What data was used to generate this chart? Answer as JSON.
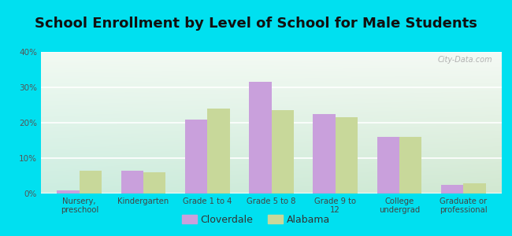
{
  "title": "School Enrollment by Level of School for Male Students",
  "categories": [
    "Nursery,\npreschool",
    "Kindergarten",
    "Grade 1 to 4",
    "Grade 5 to 8",
    "Grade 9 to\n12",
    "College\nundergrad",
    "Graduate or\nprofessional"
  ],
  "cloverdale": [
    1.0,
    6.5,
    21.0,
    31.5,
    22.5,
    16.0,
    2.5
  ],
  "alabama": [
    6.5,
    6.0,
    24.0,
    23.5,
    21.5,
    16.0,
    3.0
  ],
  "cloverdale_color": "#c9a0dc",
  "alabama_color": "#c8d89a",
  "background_outer": "#00e0f0",
  "ylim": [
    0,
    40
  ],
  "yticks": [
    0,
    10,
    20,
    30,
    40
  ],
  "ytick_labels": [
    "0%",
    "10%",
    "20%",
    "30%",
    "40%"
  ],
  "title_fontsize": 13,
  "legend_labels": [
    "Cloverdale",
    "Alabama"
  ],
  "bar_width": 0.35,
  "watermark": "City-Data.com"
}
